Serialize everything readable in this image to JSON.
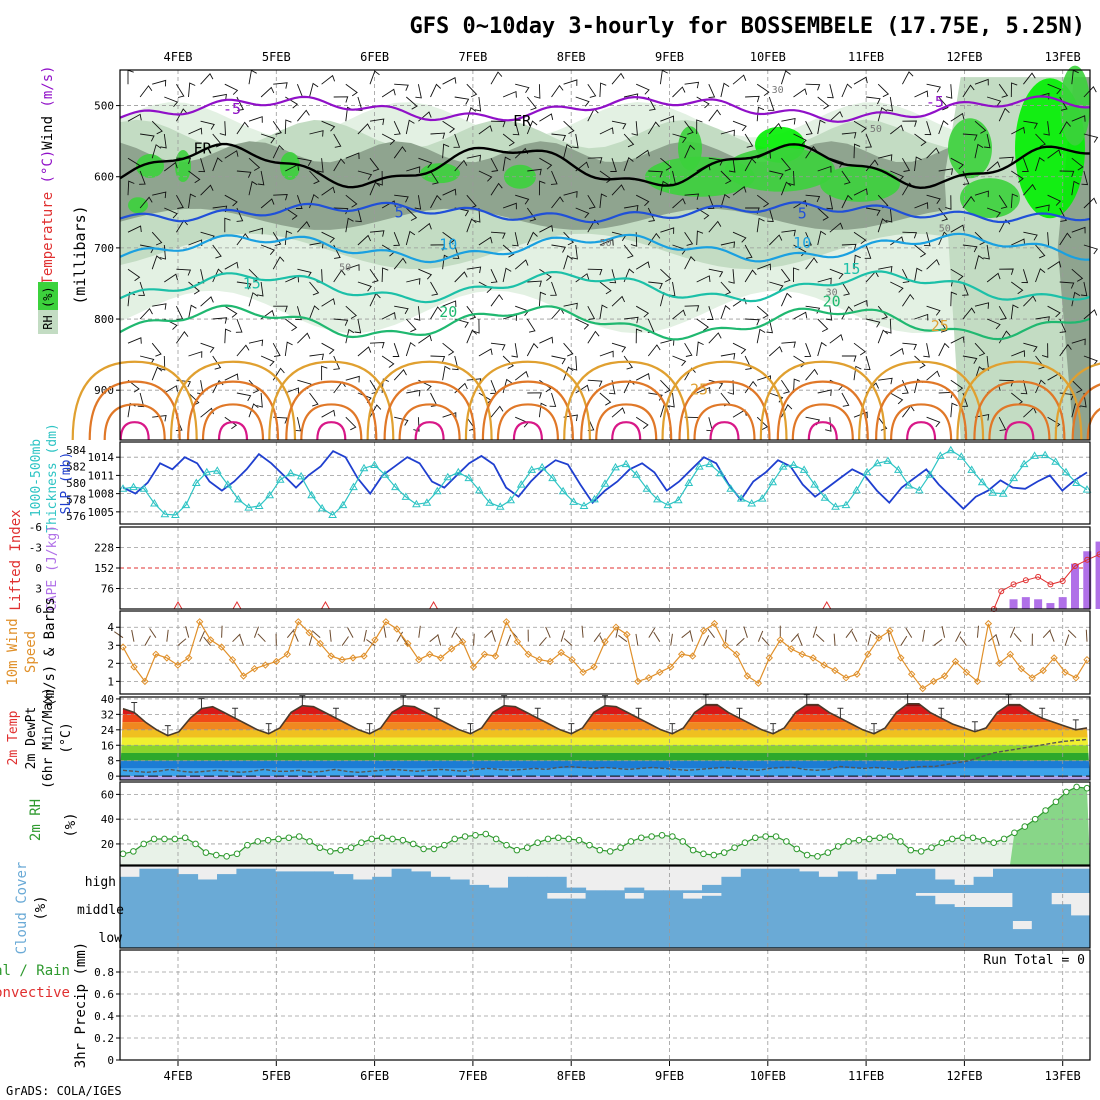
{
  "header": {
    "title": "GFS 0~10day 3-hourly for BOSSEMBELE (17.75E, 5.25N)"
  },
  "footer": {
    "credit": "GrADS: COLA/IGES"
  },
  "colors": {
    "frame": "#000000",
    "grid": "#9a9a9a",
    "rh_light": "#e3f1e3",
    "rh_mid": "#c3dcc3",
    "rh_gray": "#8fa48f",
    "rh_green": "#3cd23c",
    "rh_bright": "#00ef00",
    "temp_cold": "#9010c8",
    "temp_5": "#2050d8",
    "temp_10": "#1aa0e0",
    "temp_15": "#1cc0a8",
    "temp_20": "#20b870",
    "temp_25": "#e0a030",
    "temp_30": "#e07828",
    "temp_35": "#d81888",
    "slp_line": "#1f3fcf",
    "thickness_line": "#2ec4c4",
    "lifted_index": "#e03030",
    "cape_bar": "#b070e8",
    "wind_speed": "#e0902a",
    "wind_barb": "#6b4a2e",
    "dewpoint": "#555555",
    "cloud": "#6aaad6",
    "rh2m": "#2f9a2f"
  },
  "chart_data": [
    {
      "panel": "upper-air",
      "type": "contour",
      "x_labels": [
        "4FEB",
        "5FEB",
        "6FEB",
        "7FEB",
        "8FEB",
        "9FEB",
        "10FEB",
        "11FEB",
        "12FEB",
        "13FEB"
      ],
      "ylabel": "(millibars)",
      "y_axis_title_parts": [
        "Temperature",
        " (°C)",
        "Wind",
        " (m/s)"
      ],
      "rh_legend": "RH (%)",
      "y_ticks": [
        500,
        600,
        700,
        800,
        900
      ],
      "ylim": [
        970,
        450
      ],
      "contour_labels": [
        {
          "text": "-5",
          "x": 0.55,
          "p": 505
        },
        {
          "text": "-5",
          "x": 7.7,
          "p": 495
        },
        {
          "text": "FR",
          "x": 0.25,
          "p": 560
        },
        {
          "text": "FR",
          "x": 3.5,
          "p": 522
        },
        {
          "text": "5",
          "x": 2.25,
          "p": 650
        },
        {
          "text": "5",
          "x": 6.35,
          "p": 652
        },
        {
          "text": "10",
          "x": 2.75,
          "p": 695
        },
        {
          "text": "10",
          "x": 6.35,
          "p": 693
        },
        {
          "text": "15",
          "x": 0.75,
          "p": 750
        },
        {
          "text": "15",
          "x": 6.85,
          "p": 730
        },
        {
          "text": "20",
          "x": 2.75,
          "p": 790
        },
        {
          "text": "20",
          "x": 6.65,
          "p": 775
        },
        {
          "text": "25",
          "x": 7.75,
          "p": 810
        },
        {
          "text": "25",
          "x": 5.3,
          "p": 899
        },
        {
          "text": "30",
          "x": 6.1,
          "p": 475
        },
        {
          "text": "50",
          "x": 7.1,
          "p": 530
        },
        {
          "text": "50",
          "x": 1.7,
          "p": 725
        },
        {
          "text": "50",
          "x": 4.35,
          "p": 690
        },
        {
          "text": "50",
          "x": 7.8,
          "p": 670
        },
        {
          "text": "30",
          "x": 6.65,
          "p": 760
        }
      ]
    },
    {
      "panel": "slp-thickness",
      "type": "line",
      "y_axis_title_left": [
        "1000-500mb",
        "Thickness (dm)"
      ],
      "y_axis_title_right": "SLP (mb)",
      "thickness_ticks": [
        576,
        578,
        580,
        582,
        584
      ],
      "slp_ticks": [
        1005,
        1008,
        1011,
        1014
      ],
      "series": [
        {
          "name": "SLP",
          "unit": "mb",
          "ylim": [
            1003,
            1016.5
          ],
          "values": [
            1009,
            1008,
            1009.8,
            1013,
            1012,
            1014,
            1013,
            1010,
            1008.5,
            1010,
            1012,
            1014.5,
            1013,
            1011,
            1009,
            1011,
            1012.5,
            1015,
            1014,
            1010.5,
            1008,
            1011,
            1012.5,
            1014,
            1013,
            1010,
            1009,
            1011,
            1013,
            1014.2,
            1012.8,
            1009,
            1007.5,
            1010,
            1012,
            1013.5,
            1012.8,
            1009.5,
            1006.5,
            1008.5,
            1010,
            1012,
            1013,
            1011.5,
            1008.5,
            1010,
            1012,
            1014,
            1013,
            1009.5,
            1007,
            1010,
            1011.5,
            1013.5,
            1012.5,
            1009.5,
            1007.5,
            1009,
            1010.5,
            1012,
            1011,
            1008.5,
            1006.5,
            1009,
            1010.5,
            1012,
            1009.5,
            1007.5,
            1005.5,
            1007.5,
            1008.5,
            1010.2,
            1009,
            1008.8,
            1010,
            1011,
            1008.5,
            1010.2,
            1011.5
          ]
        },
        {
          "name": "Thickness",
          "unit": "dm",
          "ylim": [
            575,
            585
          ],
          "values": [
            579.3,
            579.5,
            579.3,
            577.5,
            576.2,
            576.1,
            577.3,
            580,
            581.3,
            581.5,
            579.8,
            578,
            577,
            577.2,
            578.5,
            580.4,
            581.2,
            580.8,
            578.5,
            576.9,
            576.1,
            577.3,
            579.5,
            581.8,
            582.2,
            581,
            579.5,
            578.3,
            577.4,
            577.6,
            579,
            580.7,
            581.3,
            580.6,
            579.1,
            577.6,
            577.1,
            577.9,
            579.8,
            581.6,
            581.9,
            580.6,
            579,
            577.7,
            577.2,
            578,
            579.9,
            581.9,
            582.3,
            581,
            579.3,
            578,
            577.3,
            577.9,
            580,
            582,
            582.3,
            581.2,
            579.3,
            578.1,
            577.5,
            578.1,
            580.1,
            582,
            582.2,
            581.6,
            579.8,
            578.2,
            577.1,
            577.3,
            579.1,
            581.3,
            582.4,
            582.7,
            581.6,
            579.7,
            579.1,
            581,
            583.3,
            584,
            583.2,
            581.6,
            580.1,
            578.8,
            578.7,
            580.6,
            582.3,
            583.3,
            583.4,
            582.6,
            581.3,
            580,
            579.2
          ]
        }
      ]
    },
    {
      "panel": "cape-lifted-index",
      "type": "bar",
      "y_axis_title_left": "Lifted Index",
      "y_axis_title_right": "CAPE (J/kg)",
      "li_ticks": [
        -6,
        -3,
        0,
        3,
        6
      ],
      "cape_ticks": [
        76,
        152,
        228
      ],
      "cape_ylim": [
        0,
        304
      ],
      "cape_bars": [
        {
          "x": 8.5,
          "value": 36
        },
        {
          "x": 8.625,
          "value": 44
        },
        {
          "x": 8.75,
          "value": 36
        },
        {
          "x": 8.875,
          "value": 22
        },
        {
          "x": 9.0,
          "value": 44
        },
        {
          "x": 9.125,
          "value": 168
        },
        {
          "x": 9.25,
          "value": 214
        },
        {
          "x": 9.375,
          "value": 250
        },
        {
          "x": 9.5,
          "value": 290
        }
      ],
      "lifted_index": [
        {
          "x": 8.3,
          "value": 6
        },
        {
          "x": 8.375,
          "value": 3.4
        },
        {
          "x": 8.5,
          "value": 2.4
        },
        {
          "x": 8.625,
          "value": 1.8
        },
        {
          "x": 8.75,
          "value": 1.3
        },
        {
          "x": 8.875,
          "value": 2.4
        },
        {
          "x": 9.0,
          "value": 1.9
        },
        {
          "x": 9.125,
          "value": -0.3
        },
        {
          "x": 9.25,
          "value": -1.2
        },
        {
          "x": 9.375,
          "value": -2.0
        },
        {
          "x": 9.5,
          "value": -3.6
        },
        {
          "x": 9.65,
          "value": -3.0
        }
      ]
    },
    {
      "panel": "10m-wind",
      "type": "line",
      "y_axis_title": "10m Wind Speed (m/s) & Barbs",
      "y_ticks": [
        1,
        2,
        3,
        4
      ],
      "ylim": [
        0.3,
        4.9
      ],
      "series": [
        {
          "name": "10m wind speed",
          "unit": "m/s",
          "values": [
            2.9,
            1.8,
            1,
            2.5,
            2.3,
            1.9,
            2.3,
            4.3,
            3.3,
            2.9,
            2.2,
            1.3,
            1.7,
            1.9,
            2.1,
            2.5,
            4.3,
            3.7,
            3.1,
            2.4,
            2.2,
            2.3,
            2.4,
            3.3,
            4.3,
            3.9,
            3.1,
            2.2,
            2.5,
            2.3,
            2.8,
            3.2,
            1.8,
            2.5,
            2.4,
            4.3,
            3.2,
            2.5,
            2.2,
            2.1,
            2.6,
            2.2,
            1.5,
            1.8,
            3.2,
            4.0,
            3.6,
            1.0,
            1.2,
            1.5,
            1.8,
            2.5,
            2.4,
            3.8,
            4.2,
            3.0,
            2.5,
            1.3,
            0.9,
            2.3,
            3.3,
            2.8,
            2.5,
            2.3,
            1.9,
            1.6,
            1.2,
            1.4,
            2.5,
            3.4,
            3.8,
            2.3,
            1.4,
            0.6,
            1.0,
            1.3,
            2.1,
            1.5,
            1.0,
            4.2,
            2.0,
            2.5,
            1.7,
            1.2,
            1.6,
            2.3,
            1.5,
            1.2,
            2.2
          ]
        }
      ]
    },
    {
      "panel": "2m-temperature",
      "type": "area",
      "y_axis_title": "2m Temp 2m DewPt (6hr Min/Max) (°C)",
      "y_ticks": [
        0,
        8,
        16,
        24,
        32,
        40
      ],
      "ylim": [
        -2,
        41
      ],
      "bands": [
        40,
        36,
        32,
        28,
        24,
        20,
        16,
        12,
        8,
        4,
        0,
        -2
      ],
      "band_colors": [
        "#8c0a0a",
        "#d81818",
        "#f04818",
        "#f08820",
        "#f0c020",
        "#f0f030",
        "#8cd42c",
        "#2ca82c",
        "#1c7cd4",
        "#3ca4ec",
        "#6ec8f8",
        "#b0a0e8"
      ],
      "series": [
        {
          "name": "2m temperature",
          "unit": "°C",
          "values": [
            35,
            33,
            28,
            24,
            21,
            23,
            30,
            35,
            36,
            33,
            30,
            27,
            24,
            22,
            25,
            33,
            36.5,
            36,
            33,
            30,
            27,
            24,
            22,
            25,
            33,
            36.5,
            36,
            33,
            30,
            27,
            24,
            22,
            25,
            33,
            36.5,
            36,
            33,
            30,
            27,
            24,
            22,
            25,
            33,
            36.5,
            36,
            33,
            30,
            27,
            24,
            22,
            25,
            33,
            37,
            37,
            33,
            30,
            27,
            24,
            22,
            25,
            33,
            37,
            37,
            33,
            30,
            27,
            24,
            22,
            25,
            33,
            37.5,
            37.5,
            33,
            30,
            27,
            25,
            23,
            25,
            33,
            37,
            37,
            33,
            30,
            28,
            26,
            24,
            25
          ]
        },
        {
          "name": "2m dew point",
          "unit": "°C",
          "values": [
            3,
            2.5,
            2,
            2.5,
            3.5,
            2.5,
            2,
            2.5,
            3,
            2.5,
            2,
            2.5,
            3.5,
            2.5,
            2.5,
            3,
            2,
            2.5,
            3.5,
            2.5,
            2,
            2.5,
            3,
            3.5,
            3,
            2.5,
            3,
            3.5,
            3,
            2.5,
            3.5,
            4,
            3.5,
            3,
            3.5,
            4,
            3.5,
            4.5,
            5,
            4.5,
            4,
            4.5,
            4,
            3.5,
            4,
            4.5,
            4,
            3.5,
            3,
            3.5,
            4,
            4.5,
            4,
            3.5,
            3,
            4,
            4.5,
            4.5,
            3.5,
            3,
            3.5,
            5,
            4.5,
            4,
            4.5,
            4,
            3.5,
            4.5,
            5,
            5,
            6,
            7,
            8,
            10,
            12,
            13,
            14,
            15,
            16,
            17,
            18,
            18.5,
            19
          ]
        }
      ]
    },
    {
      "panel": "2m-rh",
      "type": "area",
      "y_axis_title": "2m RH (%)",
      "y_ticks": [
        20,
        40,
        60
      ],
      "ylim": [
        3,
        70
      ],
      "series": [
        {
          "name": "2m RH",
          "unit": "%",
          "values": [
            12,
            14,
            20,
            24,
            24,
            24,
            25,
            20,
            13,
            11,
            10,
            12,
            19,
            22,
            23,
            24,
            25,
            26,
            22,
            17,
            14,
            15,
            17,
            21,
            24,
            25,
            24,
            23,
            20,
            16,
            16,
            19,
            24,
            26,
            27,
            28,
            24,
            19,
            15,
            17,
            21,
            24,
            25,
            24,
            23,
            19,
            15,
            14,
            17,
            22,
            25,
            26,
            27,
            26,
            22,
            15,
            12,
            11,
            13,
            17,
            21,
            25,
            26,
            26,
            22,
            16,
            11,
            10,
            13,
            18,
            22,
            23,
            24,
            25,
            26,
            22,
            15,
            14,
            17,
            21,
            24,
            25,
            25,
            23,
            21,
            24,
            29,
            34,
            40,
            47,
            54,
            62,
            66,
            65
          ]
        }
      ]
    },
    {
      "panel": "cloud-cover",
      "type": "bar",
      "y_axis_title": "Cloud Cover (%)",
      "levels": [
        "high",
        "middle",
        "low"
      ],
      "cloud_high": [
        0.6,
        0.9,
        0.9,
        0.7,
        0.5,
        0.7,
        0.9,
        0.9,
        0.8,
        0.8,
        0.8,
        0.7,
        0.5,
        0.6,
        0.9,
        0.8,
        0.6,
        0.5,
        0.3,
        0.2,
        0.6,
        0.6,
        0.6,
        0.2,
        0.1,
        0.1,
        0.2,
        0.1,
        0.1,
        0.1,
        0.3,
        0.6,
        0.9,
        0.9,
        0.9,
        0.8,
        0.6,
        0.8,
        0.5,
        0.7,
        0.9,
        0.9,
        0.5,
        0.3,
        0.6,
        0.9,
        0.9,
        0.9,
        0.9,
        0.9
      ],
      "cloud_middle": [
        1,
        1,
        1,
        1,
        1,
        1,
        1,
        1,
        1,
        1,
        1,
        1,
        1,
        1,
        1,
        1,
        1,
        1,
        1,
        1,
        1,
        1,
        0.8,
        0.8,
        1,
        1,
        0.8,
        1,
        1,
        0.8,
        0.9,
        1,
        1,
        1,
        1,
        1,
        1,
        1,
        1,
        1,
        1,
        0.9,
        0.6,
        0.5,
        0.5,
        0.5,
        1,
        1,
        0.6,
        0.2
      ],
      "cloud_low": [
        1,
        1,
        1,
        1,
        1,
        1,
        1,
        1,
        1,
        1,
        1,
        1,
        1,
        1,
        1,
        1,
        1,
        1,
        1,
        1,
        1,
        1,
        1,
        1,
        1,
        1,
        1,
        1,
        1,
        1,
        1,
        1,
        1,
        1,
        1,
        1,
        1,
        1,
        1,
        1,
        1,
        1,
        1,
        1,
        1,
        1,
        0.7,
        1,
        1,
        1
      ]
    },
    {
      "panel": "precipitation",
      "type": "bar",
      "y_axis_title_left": "Total / Rain",
      "y_axis_title_right": "Convective",
      "ylabel": "3hr Precip (mm)",
      "y_ticks": [
        0,
        0.2,
        0.4,
        0.6,
        0.8
      ],
      "ylim": [
        0,
        1
      ],
      "run_total": "Run Total = 0",
      "values": []
    }
  ]
}
